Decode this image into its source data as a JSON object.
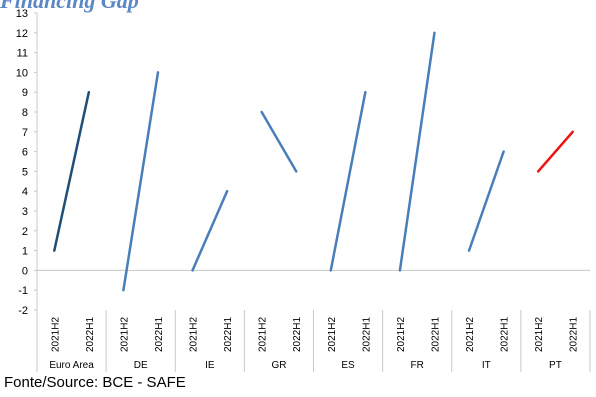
{
  "chart_data": {
    "type": "line",
    "title": "Financing Gap",
    "xlabel": "",
    "ylabel": "",
    "ylim": [
      -2,
      13
    ],
    "y_ticks": [
      -2,
      -1,
      0,
      1,
      2,
      3,
      4,
      5,
      6,
      7,
      8,
      9,
      10,
      11,
      12,
      13
    ],
    "grid": false,
    "legend": "none",
    "period_labels": [
      "2021H2",
      "2022H1"
    ],
    "groups": [
      {
        "name": "Euro Area",
        "values": [
          1,
          9
        ],
        "color": "#1f4e79"
      },
      {
        "name": "DE",
        "values": [
          -1,
          10
        ],
        "color": "#4a7ebb"
      },
      {
        "name": "IE",
        "values": [
          0,
          4
        ],
        "color": "#4a7ebb"
      },
      {
        "name": "GR",
        "values": [
          8,
          5
        ],
        "color": "#4a7ebb"
      },
      {
        "name": "ES",
        "values": [
          0,
          9
        ],
        "color": "#4a7ebb"
      },
      {
        "name": "FR",
        "values": [
          0,
          12
        ],
        "color": "#4a7ebb"
      },
      {
        "name": "IT",
        "values": [
          1,
          6
        ],
        "color": "#4a7ebb"
      },
      {
        "name": "PT",
        "values": [
          5,
          7
        ],
        "color": "#ee1111"
      }
    ]
  },
  "source": "Fonte/Source: BCE - SAFE"
}
